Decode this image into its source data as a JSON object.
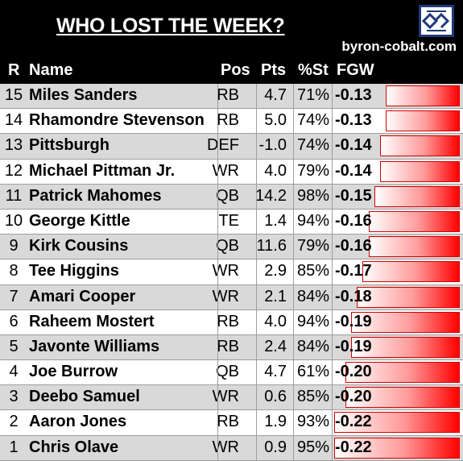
{
  "header": {
    "title": "WHO LOST THE WEEK?",
    "site": "byron-cobalt.com",
    "logo_icon": "bc-logo-icon"
  },
  "columns": [
    "R",
    "Name",
    "Pos",
    "Pts",
    "%St",
    "FGW"
  ],
  "colors": {
    "bar_end": "#ff0000",
    "bar_start": "#ffffff",
    "shade": "#d9d9d9",
    "header_bg": "#000000"
  },
  "chart_data": {
    "type": "table",
    "title": "WHO LOST THE WEEK?",
    "columns": [
      "R",
      "Name",
      "Pos",
      "Pts",
      "%St",
      "FGW"
    ],
    "bar_column": "FGW",
    "bar_scale_max": 0.22,
    "rows": [
      {
        "R": "15",
        "Name": "Miles Sanders",
        "Pos": "RB",
        "Pts": "4.7",
        "St": "71%",
        "FGW": "-0.13",
        "fgw_value": -0.13
      },
      {
        "R": "14",
        "Name": "Rhamondre Stevenson",
        "Pos": "RB",
        "Pts": "5.0",
        "St": "74%",
        "FGW": "-0.13",
        "fgw_value": -0.13
      },
      {
        "R": "13",
        "Name": "Pittsburgh",
        "Pos": "DEF",
        "Pts": "-1.0",
        "St": "74%",
        "FGW": "-0.14",
        "fgw_value": -0.14
      },
      {
        "R": "12",
        "Name": "Michael Pittman Jr.",
        "Pos": "WR",
        "Pts": "4.0",
        "St": "79%",
        "FGW": "-0.14",
        "fgw_value": -0.14
      },
      {
        "R": "11",
        "Name": "Patrick Mahomes",
        "Pos": "QB",
        "Pts": "14.2",
        "St": "98%",
        "FGW": "-0.15",
        "fgw_value": -0.15
      },
      {
        "R": "10",
        "Name": "George Kittle",
        "Pos": "TE",
        "Pts": "1.4",
        "St": "94%",
        "FGW": "-0.16",
        "fgw_value": -0.16
      },
      {
        "R": "9",
        "Name": "Kirk Cousins",
        "Pos": "QB",
        "Pts": "11.6",
        "St": "79%",
        "FGW": "-0.16",
        "fgw_value": -0.16
      },
      {
        "R": "8",
        "Name": "Tee Higgins",
        "Pos": "WR",
        "Pts": "2.9",
        "St": "85%",
        "FGW": "-0.17",
        "fgw_value": -0.17
      },
      {
        "R": "7",
        "Name": "Amari Cooper",
        "Pos": "WR",
        "Pts": "2.1",
        "St": "84%",
        "FGW": "-0.18",
        "fgw_value": -0.18
      },
      {
        "R": "6",
        "Name": "Raheem Mostert",
        "Pos": "RB",
        "Pts": "4.0",
        "St": "94%",
        "FGW": "-0.19",
        "fgw_value": -0.19
      },
      {
        "R": "5",
        "Name": "Javonte Williams",
        "Pos": "RB",
        "Pts": "2.4",
        "St": "84%",
        "FGW": "-0.19",
        "fgw_value": -0.19
      },
      {
        "R": "4",
        "Name": "Joe Burrow",
        "Pos": "QB",
        "Pts": "4.7",
        "St": "61%",
        "FGW": "-0.20",
        "fgw_value": -0.2
      },
      {
        "R": "3",
        "Name": "Deebo Samuel",
        "Pos": "WR",
        "Pts": "0.6",
        "St": "85%",
        "FGW": "-0.20",
        "fgw_value": -0.2
      },
      {
        "R": "2",
        "Name": "Aaron Jones",
        "Pos": "RB",
        "Pts": "1.9",
        "St": "93%",
        "FGW": "-0.22",
        "fgw_value": -0.22
      },
      {
        "R": "1",
        "Name": "Chris Olave",
        "Pos": "WR",
        "Pts": "0.9",
        "St": "95%",
        "FGW": "-0.22",
        "fgw_value": -0.22
      }
    ]
  }
}
